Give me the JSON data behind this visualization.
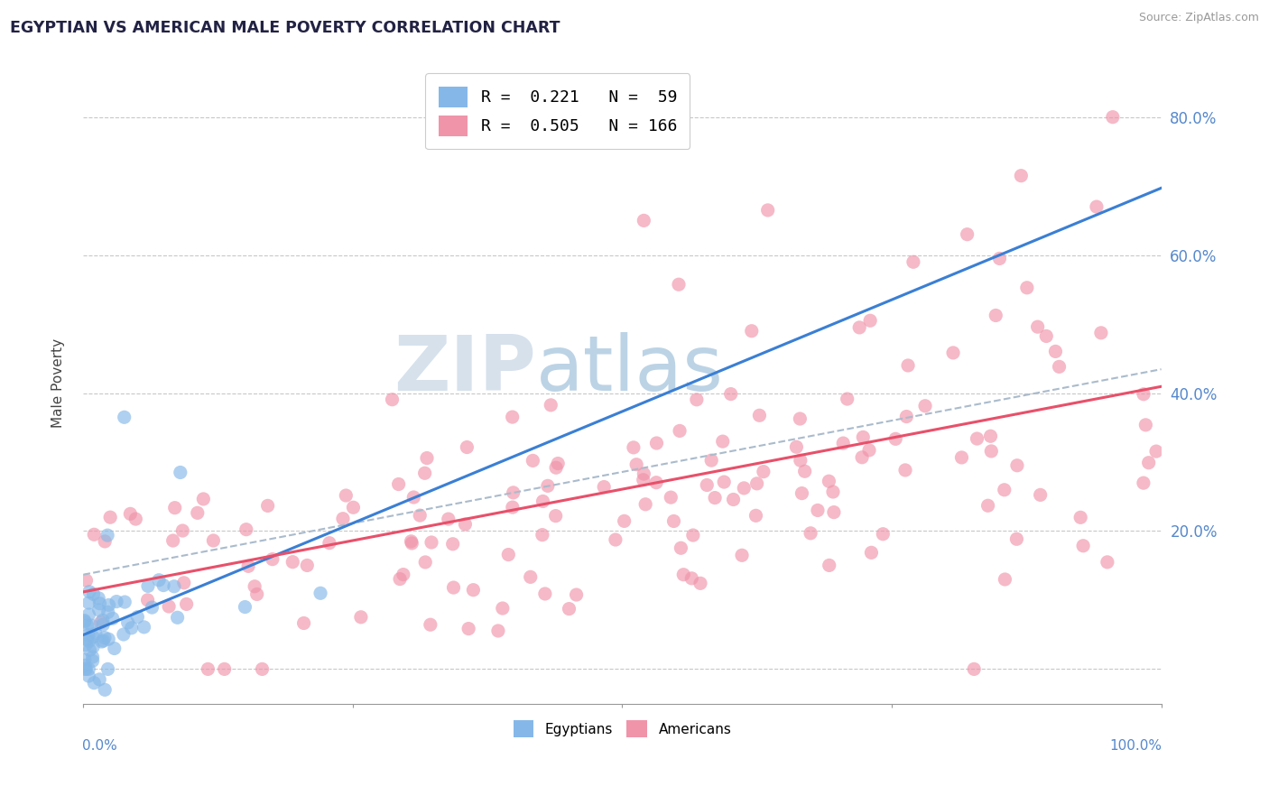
{
  "title": "EGYPTIAN VS AMERICAN MALE POVERTY CORRELATION CHART",
  "source": "Source: ZipAtlas.com",
  "ylabel": "Male Poverty",
  "xlim": [
    0,
    1.0
  ],
  "ylim": [
    -0.05,
    0.88
  ],
  "legend_line1": "R =  0.221   N =  59",
  "legend_line2": "R =  0.505   N = 166",
  "egyptian_color": "#85b8e8",
  "american_color": "#f094aa",
  "egyptian_line_color": "#3a7fd4",
  "american_line_color": "#e8506a",
  "background_color": "#ffffff",
  "grid_color": "#c8c8c8",
  "right_tick_color": "#5588cc",
  "watermark_color": "#ccdaee",
  "eg_seed": 42,
  "am_seed": 123
}
